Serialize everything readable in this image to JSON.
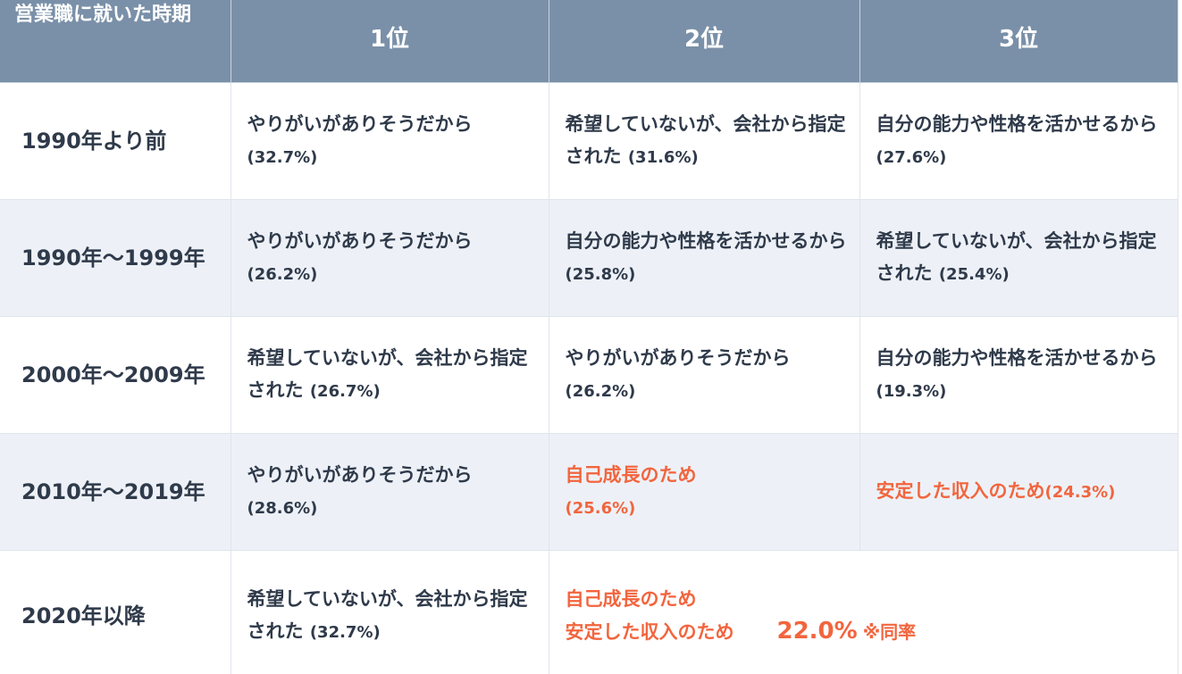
{
  "header": {
    "period": "営業職に就いた時期",
    "rank1": "1位",
    "rank2": "2位",
    "rank3": "3位"
  },
  "rows": [
    {
      "period": "1990年より前",
      "rank1": {
        "text": "やりがいがありそうだから",
        "pct": "(32.7%)"
      },
      "rank2": {
        "text": "希望していないが、会社から指定された",
        "pct": "(31.6%)"
      },
      "rank3": {
        "text": "自分の能力や性格を活かせるから",
        "pct": "(27.6%)"
      }
    },
    {
      "period": "1990年〜1999年",
      "rank1": {
        "text": "やりがいがありそうだから",
        "pct": "(26.2%)"
      },
      "rank2": {
        "text": "自分の能力や性格を活かせるから",
        "pct": "(25.8%)"
      },
      "rank3": {
        "text": "希望していないが、会社から指定された",
        "pct": "(25.4%)"
      }
    },
    {
      "period": "2000年〜2009年",
      "rank1": {
        "text": "希望していないが、会社から指定された",
        "pct": "(26.7%)"
      },
      "rank2": {
        "text": "やりがいがありそうだから",
        "pct": "(26.2%)"
      },
      "rank3": {
        "text": "自分の能力や性格を活かせるから",
        "pct": "(19.3%)"
      }
    },
    {
      "period": "2010年〜2019年",
      "rank1": {
        "text": "やりがいがありそうだから",
        "pct": "(28.6%)"
      },
      "rank2": {
        "text": "自己成長のため",
        "pct": "(25.6%)"
      },
      "rank3": {
        "text": "安定した収入のため",
        "pct": "(24.3%)"
      }
    },
    {
      "period": "2020年以降",
      "rank1": {
        "text": "希望していないが、会社から指定された",
        "pct": "(32.7%)"
      },
      "combined": {
        "line1": "自己成長のため",
        "line2": "安定した収入のため",
        "value": "22.0%",
        "note": "※同率"
      }
    }
  ],
  "colors": {
    "header_bg": "#7a90a8",
    "shaded_row_bg": "#edf1f7",
    "accent": "#f2653e",
    "text": "#2f3a4a"
  }
}
